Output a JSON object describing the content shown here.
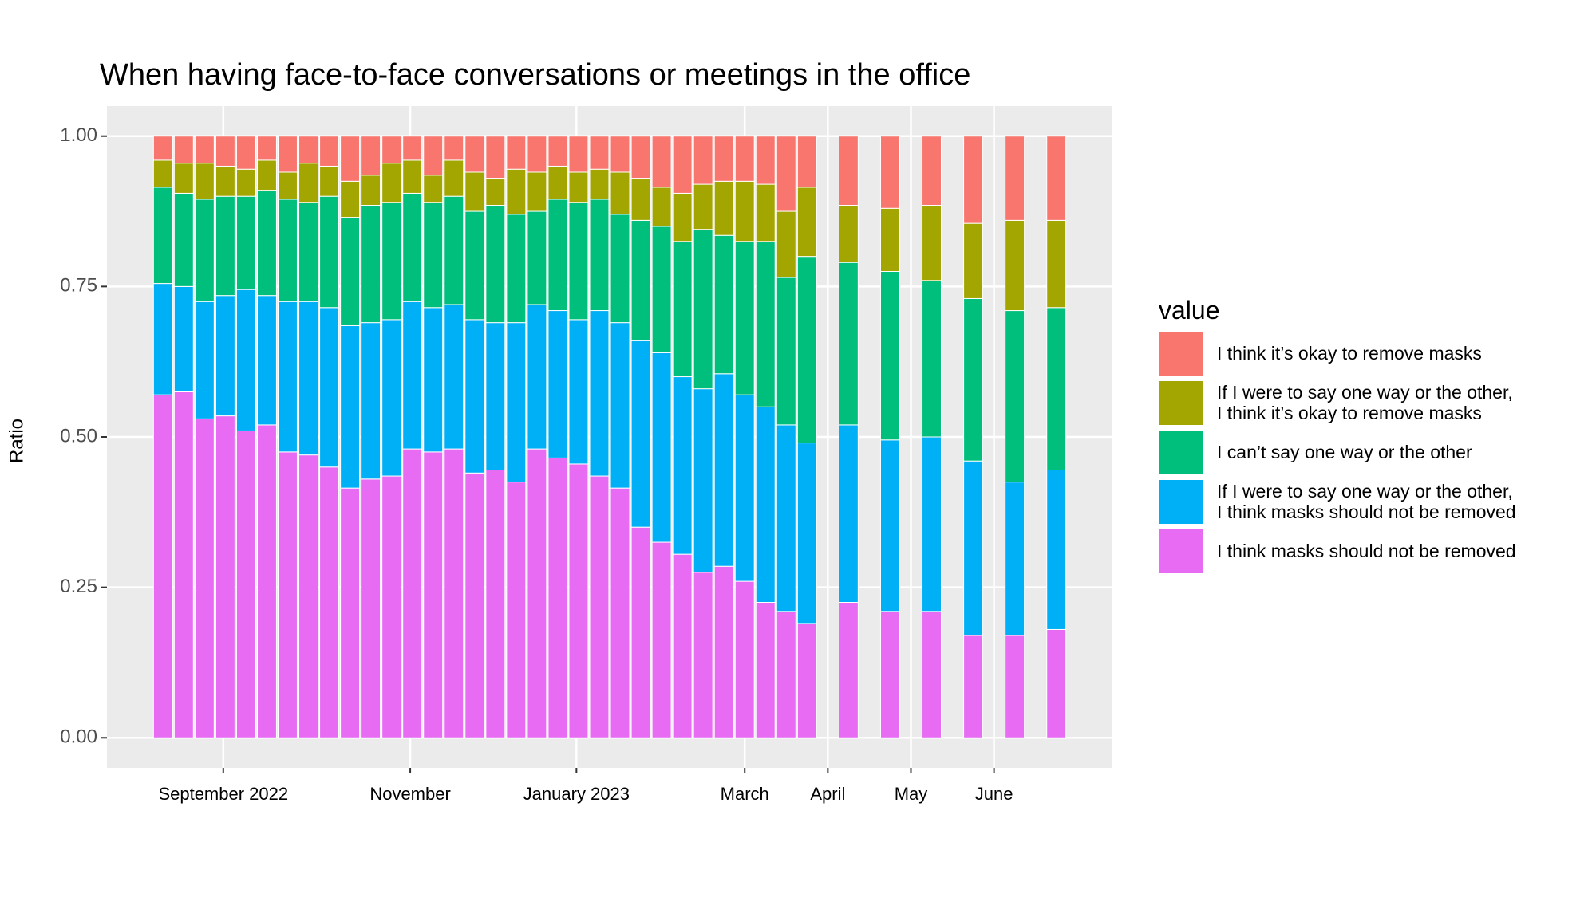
{
  "chart_data": {
    "type": "stacked_bar",
    "title": "When having face-to-face conversations or meetings in the office",
    "y_label": "Ratio",
    "legend_title": "value",
    "x": [
      0,
      1,
      2,
      3,
      4,
      5,
      6,
      7,
      8,
      9,
      10,
      11,
      12,
      13,
      14,
      15,
      16,
      17,
      18,
      19,
      20,
      21,
      22,
      23,
      24,
      25,
      26,
      27,
      28,
      29,
      30,
      31,
      33,
      35,
      37,
      39,
      41,
      43
    ],
    "xlim": [
      -2.7,
      45.7
    ],
    "xticks": [
      {
        "value": 2.9,
        "label": "September 2022"
      },
      {
        "value": 11.9,
        "label": "November"
      },
      {
        "value": 19.9,
        "label": "January 2023"
      },
      {
        "value": 28,
        "label": "March"
      },
      {
        "value": 32,
        "label": "April"
      },
      {
        "value": 36,
        "label": "May"
      },
      {
        "value": 40,
        "label": "June"
      }
    ],
    "ylim": [
      -0.05,
      1.05
    ],
    "yticks": [
      {
        "value": 0,
        "label": "0.00"
      },
      {
        "value": 0.25,
        "label": "0.25"
      },
      {
        "value": 0.5,
        "label": "0.50"
      },
      {
        "value": 0.75,
        "label": "0.75"
      },
      {
        "value": 1,
        "label": "1.00"
      }
    ],
    "grid": true,
    "legend_position": "right",
    "series": [
      {
        "name": "I think it’s okay to remove masks",
        "color": "#F8766D",
        "values": [
          0.04,
          0.045,
          0.045,
          0.05,
          0.055,
          0.04,
          0.06,
          0.045,
          0.05,
          0.075,
          0.065,
          0.045,
          0.04,
          0.065,
          0.04,
          0.06,
          0.07,
          0.055,
          0.06,
          0.05,
          0.06,
          0.055,
          0.06,
          0.07,
          0.085,
          0.095,
          0.08,
          0.075,
          0.075,
          0.08,
          0.125,
          0.085,
          0.115,
          0.12,
          0.115,
          0.145,
          0.14,
          0.14
        ]
      },
      {
        "name": "If I were to say one way or the other,\nI think it’s okay to remove  masks",
        "color": "#A3A500",
        "values": [
          0.045,
          0.05,
          0.06,
          0.05,
          0.045,
          0.05,
          0.045,
          0.065,
          0.05,
          0.06,
          0.05,
          0.065,
          0.055,
          0.045,
          0.06,
          0.065,
          0.045,
          0.075,
          0.065,
          0.055,
          0.05,
          0.05,
          0.07,
          0.07,
          0.065,
          0.08,
          0.075,
          0.09,
          0.1,
          0.095,
          0.11,
          0.115,
          0.095,
          0.105,
          0.125,
          0.125,
          0.15,
          0.145
        ]
      },
      {
        "name": "I can’t say one way or the other",
        "color": "#00BF7D",
        "values": [
          0.16,
          0.155,
          0.17,
          0.165,
          0.155,
          0.175,
          0.17,
          0.165,
          0.185,
          0.18,
          0.195,
          0.195,
          0.18,
          0.175,
          0.18,
          0.18,
          0.195,
          0.18,
          0.155,
          0.185,
          0.195,
          0.185,
          0.18,
          0.2,
          0.21,
          0.225,
          0.265,
          0.23,
          0.255,
          0.275,
          0.245,
          0.31,
          0.27,
          0.28,
          0.26,
          0.27,
          0.285,
          0.27
        ]
      },
      {
        "name": "If I were to say one way or the other,\nI think masks should not be removed",
        "color": "#00B0F6",
        "values": [
          0.185,
          0.175,
          0.195,
          0.2,
          0.235,
          0.215,
          0.25,
          0.255,
          0.265,
          0.27,
          0.26,
          0.26,
          0.245,
          0.24,
          0.24,
          0.255,
          0.245,
          0.265,
          0.24,
          0.245,
          0.24,
          0.275,
          0.275,
          0.31,
          0.315,
          0.295,
          0.305,
          0.32,
          0.31,
          0.325,
          0.31,
          0.3,
          0.295,
          0.285,
          0.29,
          0.29,
          0.255,
          0.265
        ]
      },
      {
        "name": "I think masks should not be removed",
        "color": "#E76BF3",
        "values": [
          0.57,
          0.575,
          0.53,
          0.535,
          0.51,
          0.52,
          0.475,
          0.47,
          0.45,
          0.415,
          0.43,
          0.435,
          0.48,
          0.475,
          0.48,
          0.44,
          0.445,
          0.425,
          0.48,
          0.465,
          0.455,
          0.435,
          0.415,
          0.35,
          0.325,
          0.305,
          0.275,
          0.285,
          0.26,
          0.225,
          0.21,
          0.19,
          0.225,
          0.21,
          0.21,
          0.17,
          0.17,
          0.18
        ]
      }
    ]
  }
}
